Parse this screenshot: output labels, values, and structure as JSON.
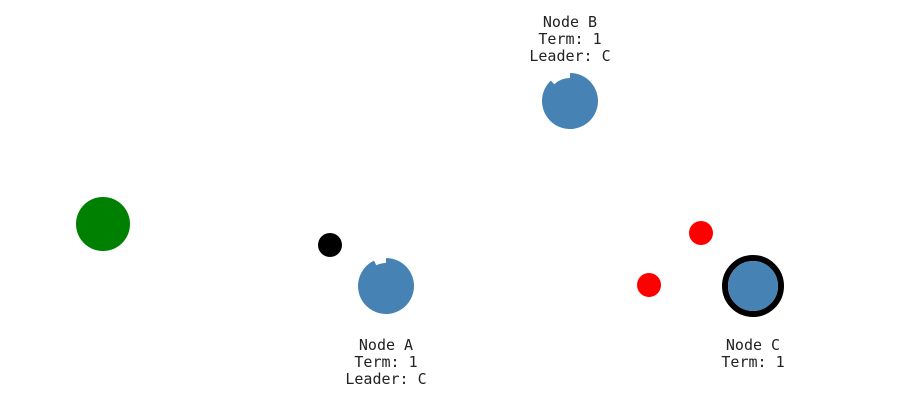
{
  "diagram": {
    "colors": {
      "node_fill": "#4682b4",
      "leader_ring": "#000000",
      "client": "#008000",
      "message_request": "#ff0000",
      "message_response": "#000000",
      "label_text": "#222222",
      "background": "#ffffff"
    },
    "client": {
      "name": "client-node"
    },
    "nodes": [
      {
        "id": "A",
        "name": "Node A",
        "term_text": "Term: 1",
        "leader_text": "Leader: C",
        "is_leader": false,
        "election_timer_progress": 0.93
      },
      {
        "id": "B",
        "name": "Node B",
        "term_text": "Term: 1",
        "leader_text": "Leader: C",
        "is_leader": false,
        "election_timer_progress": 0.88
      },
      {
        "id": "C",
        "name": "Node C",
        "term_text": "Term: 1",
        "leader_text": "",
        "is_leader": true,
        "election_timer_progress": 1.0
      }
    ],
    "messages": [
      {
        "kind": "request",
        "from": "C",
        "to": "B"
      },
      {
        "kind": "request",
        "from": "C",
        "to": "A"
      },
      {
        "kind": "response",
        "from": "A",
        "to": "C"
      }
    ]
  }
}
